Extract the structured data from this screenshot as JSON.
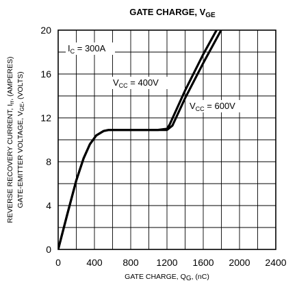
{
  "chart_data": {
    "type": "line",
    "title": {
      "main": "GATE CHARGE, V",
      "sub": "GE"
    },
    "xlabel": {
      "pre": "GATE CHARGE, Q",
      "sub": "G",
      "post": ", (nC)"
    },
    "ylabel_line1": {
      "pre": "REVERSE RECOVERY CURRENT, I",
      "sub": "rr",
      "post": ", (AMPERES)"
    },
    "ylabel_line2": {
      "pre": "GATE-EMITTER VOLTAGE, V",
      "sub": "GE",
      "post": ", (VOLTS)"
    },
    "xlim": [
      0,
      2400
    ],
    "ylim": [
      0,
      20
    ],
    "x_ticks": [
      0,
      400,
      800,
      1200,
      1600,
      2000,
      2400
    ],
    "y_ticks": [
      0,
      4,
      8,
      12,
      16,
      20
    ],
    "x_grid_step": 200,
    "y_grid_step": 2,
    "grid": true,
    "annotations": [
      {
        "pre": "I",
        "sub": "C",
        "post": " = 300A"
      },
      {
        "pre": "V",
        "sub": "CC",
        "post": " = 400V"
      },
      {
        "pre": "V",
        "sub": "CC",
        "post": " = 600V"
      }
    ],
    "series": [
      {
        "label_index": 1,
        "x": [
          0,
          100,
          200,
          280,
          350,
          420,
          500,
          560,
          700,
          900,
          1100,
          1200,
          1230,
          1400,
          1600,
          1800
        ],
        "y": [
          0,
          3.2,
          6.3,
          8.3,
          9.6,
          10.4,
          10.8,
          10.9,
          10.9,
          10.9,
          10.9,
          11.0,
          11.4,
          14.5,
          17.8,
          20.8
        ]
      },
      {
        "label_index": 2,
        "x": [
          0,
          100,
          200,
          280,
          350,
          420,
          500,
          560,
          700,
          900,
          1100,
          1200,
          1260,
          1400,
          1600,
          1850
        ],
        "y": [
          0,
          3.2,
          6.3,
          8.3,
          9.6,
          10.4,
          10.8,
          10.9,
          10.9,
          10.9,
          10.9,
          10.9,
          11.3,
          13.8,
          17.0,
          20.8
        ]
      }
    ]
  }
}
